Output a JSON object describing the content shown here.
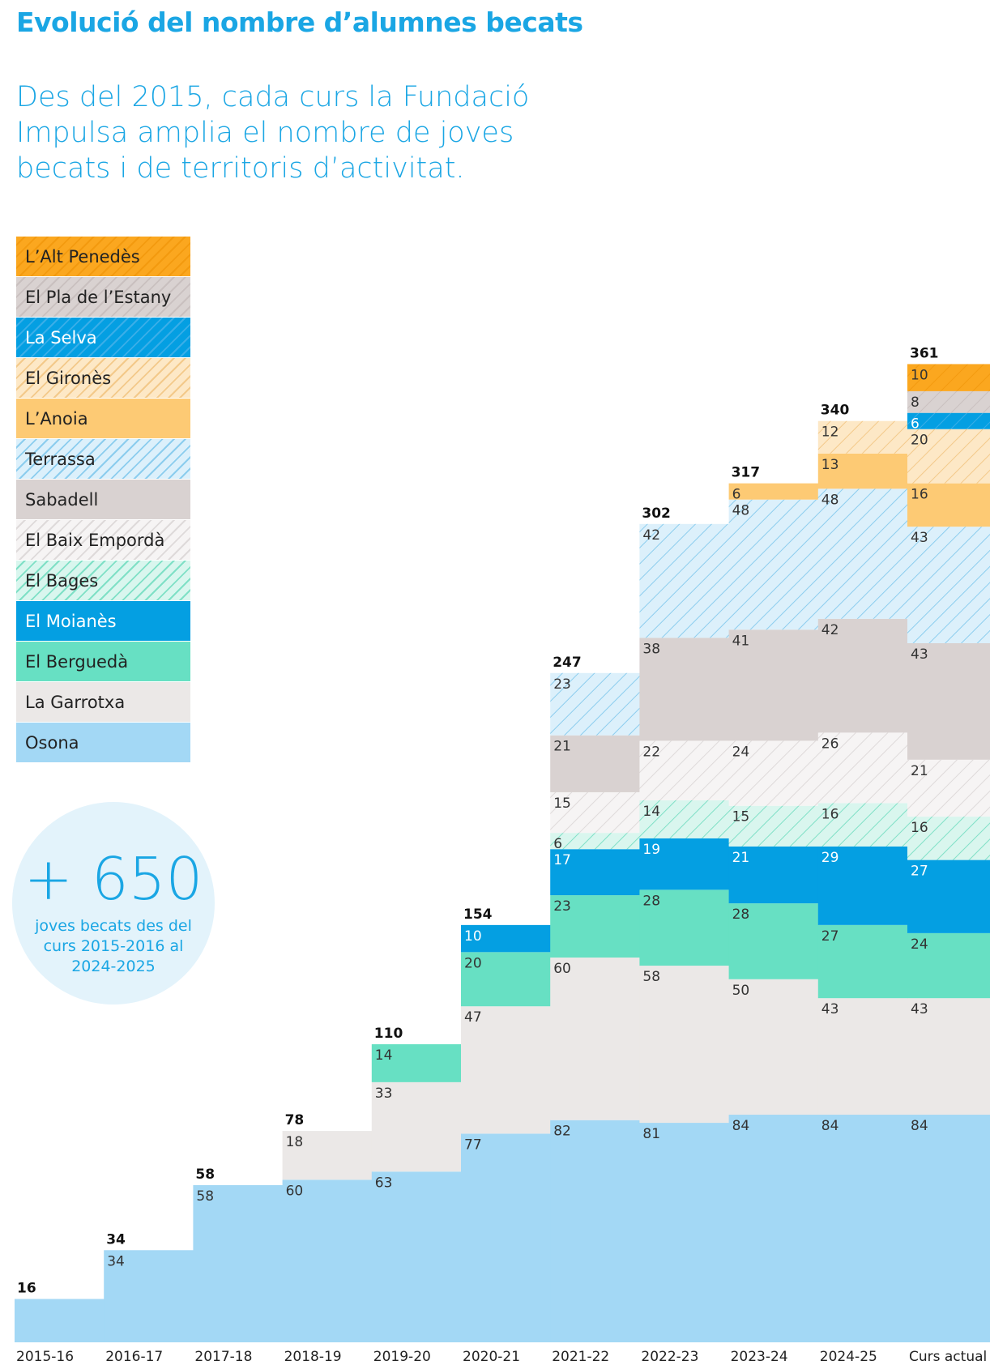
{
  "title": "Evolució del nombre d’alumnes becats",
  "subtitle": "Des del 2015, cada curs la Fundació Impulsa amplia el nombre de joves becats i de territoris d’activitat.",
  "badge": {
    "number": "+ 650",
    "caption": "joves becats des del curs 2015-2016 al 2024-2025"
  },
  "chart_data": {
    "type": "bar",
    "stacked": true,
    "categories": [
      "2015-16",
      "2016-17",
      "2017-18",
      "2018-19",
      "2019-20",
      "2020-21",
      "2021-22",
      "2022-23",
      "2023-24",
      "2024-25",
      "Curs actual"
    ],
    "totals": [
      16,
      34,
      58,
      78,
      110,
      154,
      247,
      302,
      317,
      340,
      361
    ],
    "series": [
      {
        "name": "Osona",
        "color": "#a3d8f5",
        "pattern": false,
        "values": [
          16,
          34,
          58,
          60,
          63,
          77,
          82,
          81,
          84,
          84,
          84
        ]
      },
      {
        "name": "La Garrotxa",
        "color": "#ebe8e7",
        "pattern": false,
        "values": [
          0,
          0,
          0,
          18,
          33,
          47,
          60,
          58,
          50,
          43,
          43
        ]
      },
      {
        "name": "El Berguedà",
        "color": "#67e0c3",
        "pattern": false,
        "values": [
          0,
          0,
          0,
          0,
          14,
          20,
          23,
          28,
          28,
          27,
          24
        ]
      },
      {
        "name": "El Moianès",
        "color": "#049fe2",
        "pattern": false,
        "light_text": true,
        "values": [
          0,
          0,
          0,
          0,
          0,
          10,
          17,
          19,
          21,
          29,
          27
        ]
      },
      {
        "name": "El Bages",
        "color": "#d9f6ee",
        "pattern": true,
        "hatch": "#7fe0c6",
        "values": [
          0,
          0,
          0,
          0,
          0,
          0,
          6,
          14,
          15,
          16,
          16
        ]
      },
      {
        "name": "El Baix Empordà",
        "color": "#f6f4f4",
        "pattern": true,
        "hatch": "#dedada",
        "values": [
          0,
          0,
          0,
          0,
          0,
          0,
          15,
          22,
          24,
          26,
          21
        ]
      },
      {
        "name": "Sabadell",
        "color": "#d9d2d1",
        "pattern": false,
        "values": [
          0,
          0,
          0,
          0,
          0,
          0,
          21,
          38,
          41,
          42,
          43
        ]
      },
      {
        "name": "Terrassa",
        "color": "#dcf0fb",
        "pattern": true,
        "hatch": "#8ccdee",
        "values": [
          0,
          0,
          0,
          0,
          0,
          0,
          23,
          42,
          48,
          48,
          43
        ]
      },
      {
        "name": "L’Anoia",
        "color": "#fdca74",
        "pattern": false,
        "values": [
          0,
          0,
          0,
          0,
          0,
          0,
          0,
          0,
          6,
          13,
          16
        ]
      },
      {
        "name": "El Gironès",
        "color": "#fde8c6",
        "pattern": true,
        "hatch": "#f3c98a",
        "values": [
          0,
          0,
          0,
          0,
          0,
          0,
          0,
          0,
          0,
          12,
          20
        ]
      },
      {
        "name": "La Selva",
        "color": "#049fe2",
        "pattern": true,
        "hatch": "#3aaee8",
        "light_text": true,
        "values": [
          0,
          0,
          0,
          0,
          0,
          0,
          0,
          0,
          0,
          0,
          6
        ]
      },
      {
        "name": "El Pla de l’Estany",
        "color": "#d9d2d1",
        "pattern": true,
        "hatch": "#c9c0bf",
        "values": [
          0,
          0,
          0,
          0,
          0,
          0,
          0,
          0,
          0,
          0,
          8
        ]
      },
      {
        "name": "L’Alt Penedès",
        "color": "#fba71f",
        "pattern": true,
        "hatch": "#f39a0f",
        "values": [
          0,
          0,
          0,
          0,
          0,
          0,
          0,
          0,
          0,
          0,
          10
        ]
      }
    ],
    "ylim": [
      0,
      361
    ],
    "grid": false,
    "legend": "left"
  }
}
